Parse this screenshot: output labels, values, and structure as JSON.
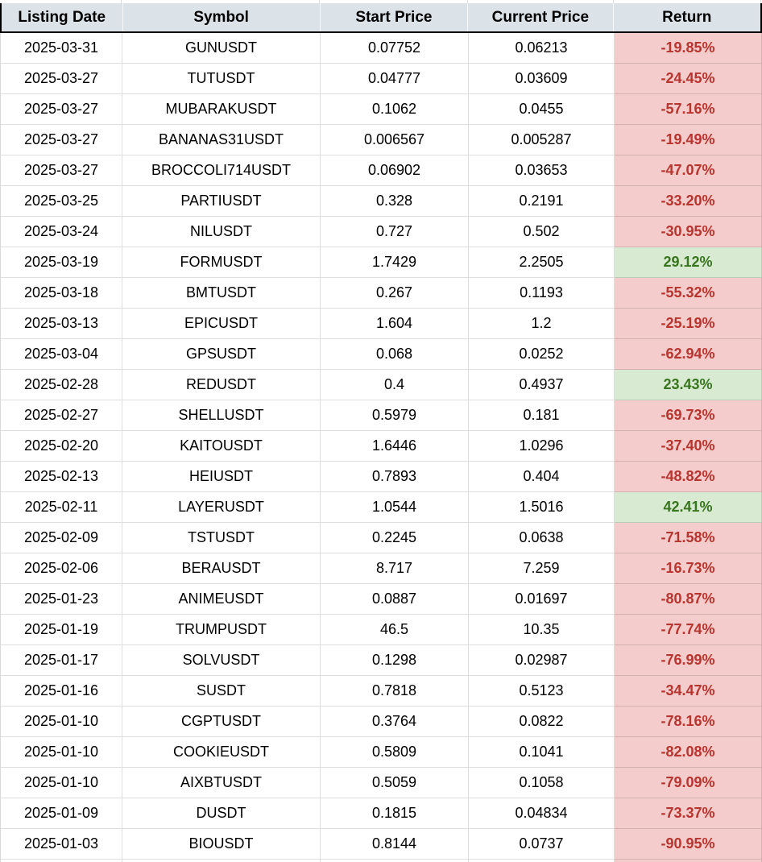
{
  "chart_data": {
    "type": "table",
    "columns": [
      "Listing Date",
      "Symbol",
      "Start Price",
      "Current Price",
      "Return"
    ],
    "rows": [
      {
        "listing_date": "2025-03-31",
        "symbol": "GUNUSDT",
        "start_price": "0.07752",
        "current_price": "0.06213",
        "return": "-19.85%",
        "direction": "negative"
      },
      {
        "listing_date": "2025-03-27",
        "symbol": "TUTUSDT",
        "start_price": "0.04777",
        "current_price": "0.03609",
        "return": "-24.45%",
        "direction": "negative"
      },
      {
        "listing_date": "2025-03-27",
        "symbol": "MUBARAKUSDT",
        "start_price": "0.1062",
        "current_price": "0.0455",
        "return": "-57.16%",
        "direction": "negative"
      },
      {
        "listing_date": "2025-03-27",
        "symbol": "BANANAS31USDT",
        "start_price": "0.006567",
        "current_price": "0.005287",
        "return": "-19.49%",
        "direction": "negative"
      },
      {
        "listing_date": "2025-03-27",
        "symbol": "BROCCOLI714USDT",
        "start_price": "0.06902",
        "current_price": "0.03653",
        "return": "-47.07%",
        "direction": "negative"
      },
      {
        "listing_date": "2025-03-25",
        "symbol": "PARTIUSDT",
        "start_price": "0.328",
        "current_price": "0.2191",
        "return": "-33.20%",
        "direction": "negative"
      },
      {
        "listing_date": "2025-03-24",
        "symbol": "NILUSDT",
        "start_price": "0.727",
        "current_price": "0.502",
        "return": "-30.95%",
        "direction": "negative"
      },
      {
        "listing_date": "2025-03-19",
        "symbol": "FORMUSDT",
        "start_price": "1.7429",
        "current_price": "2.2505",
        "return": "29.12%",
        "direction": "positive"
      },
      {
        "listing_date": "2025-03-18",
        "symbol": "BMTUSDT",
        "start_price": "0.267",
        "current_price": "0.1193",
        "return": "-55.32%",
        "direction": "negative"
      },
      {
        "listing_date": "2025-03-13",
        "symbol": "EPICUSDT",
        "start_price": "1.604",
        "current_price": "1.2",
        "return": "-25.19%",
        "direction": "negative"
      },
      {
        "listing_date": "2025-03-04",
        "symbol": "GPSUSDT",
        "start_price": "0.068",
        "current_price": "0.0252",
        "return": "-62.94%",
        "direction": "negative"
      },
      {
        "listing_date": "2025-02-28",
        "symbol": "REDUSDT",
        "start_price": "0.4",
        "current_price": "0.4937",
        "return": "23.43%",
        "direction": "positive"
      },
      {
        "listing_date": "2025-02-27",
        "symbol": "SHELLUSDT",
        "start_price": "0.5979",
        "current_price": "0.181",
        "return": "-69.73%",
        "direction": "negative"
      },
      {
        "listing_date": "2025-02-20",
        "symbol": "KAITOUSDT",
        "start_price": "1.6446",
        "current_price": "1.0296",
        "return": "-37.40%",
        "direction": "negative"
      },
      {
        "listing_date": "2025-02-13",
        "symbol": "HEIUSDT",
        "start_price": "0.7893",
        "current_price": "0.404",
        "return": "-48.82%",
        "direction": "negative"
      },
      {
        "listing_date": "2025-02-11",
        "symbol": "LAYERUSDT",
        "start_price": "1.0544",
        "current_price": "1.5016",
        "return": "42.41%",
        "direction": "positive"
      },
      {
        "listing_date": "2025-02-09",
        "symbol": "TSTUSDT",
        "start_price": "0.2245",
        "current_price": "0.0638",
        "return": "-71.58%",
        "direction": "negative"
      },
      {
        "listing_date": "2025-02-06",
        "symbol": "BERAUSDT",
        "start_price": "8.717",
        "current_price": "7.259",
        "return": "-16.73%",
        "direction": "negative"
      },
      {
        "listing_date": "2025-01-23",
        "symbol": "ANIMEUSDT",
        "start_price": "0.0887",
        "current_price": "0.01697",
        "return": "-80.87%",
        "direction": "negative"
      },
      {
        "listing_date": "2025-01-19",
        "symbol": "TRUMPUSDT",
        "start_price": "46.5",
        "current_price": "10.35",
        "return": "-77.74%",
        "direction": "negative"
      },
      {
        "listing_date": "2025-01-17",
        "symbol": "SOLVUSDT",
        "start_price": "0.1298",
        "current_price": "0.02987",
        "return": "-76.99%",
        "direction": "negative"
      },
      {
        "listing_date": "2025-01-16",
        "symbol": "SUSDT",
        "start_price": "0.7818",
        "current_price": "0.5123",
        "return": "-34.47%",
        "direction": "negative"
      },
      {
        "listing_date": "2025-01-10",
        "symbol": "CGPTUSDT",
        "start_price": "0.3764",
        "current_price": "0.0822",
        "return": "-78.16%",
        "direction": "negative"
      },
      {
        "listing_date": "2025-01-10",
        "symbol": "COOKIEUSDT",
        "start_price": "0.5809",
        "current_price": "0.1041",
        "return": "-82.08%",
        "direction": "negative"
      },
      {
        "listing_date": "2025-01-10",
        "symbol": "AIXBTUSDT",
        "start_price": "0.5059",
        "current_price": "0.1058",
        "return": "-79.09%",
        "direction": "negative"
      },
      {
        "listing_date": "2025-01-09",
        "symbol": "DUSDT",
        "start_price": "0.1815",
        "current_price": "0.04834",
        "return": "-73.37%",
        "direction": "negative"
      },
      {
        "listing_date": "2025-01-03",
        "symbol": "BIOUSDT",
        "start_price": "0.8144",
        "current_price": "0.0737",
        "return": "-90.95%",
        "direction": "negative"
      }
    ]
  },
  "colors": {
    "header_bg": "#dbe2e8",
    "negative_bg": "#f4cccc",
    "negative_text": "#b8342e",
    "positive_bg": "#d9ead3",
    "positive_text": "#38761d",
    "grid_line": "#d9d9d9"
  }
}
